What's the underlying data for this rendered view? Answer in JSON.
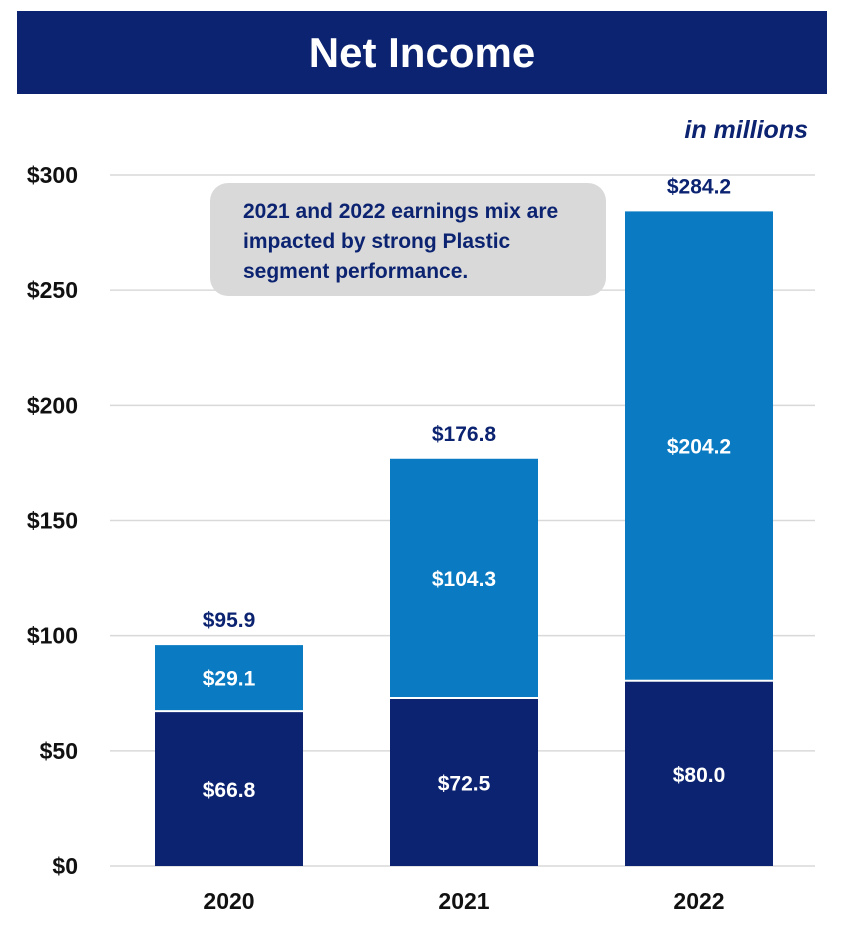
{
  "header": {
    "title": "Net Income"
  },
  "units_note": "in millions",
  "callout": "2021 and 2022 earnings mix are impacted by strong Plastic segment performance.",
  "colors": {
    "navy": "#0b2370",
    "blue": "#0a7bc2",
    "callout_bg": "#d9d9d9",
    "grid": "#d9d9d9"
  },
  "chart_data": {
    "type": "bar",
    "stacked": true,
    "title": "Net Income",
    "categories": [
      "2020",
      "2021",
      "2022"
    ],
    "series": [
      {
        "values": [
          66.8,
          72.5,
          80.0
        ],
        "labels": [
          "$66.8",
          "$72.5",
          "$80.0"
        ],
        "color": "#0b2370"
      },
      {
        "values": [
          29.1,
          104.3,
          204.2
        ],
        "labels": [
          "$29.1",
          "$104.3",
          "$204.2"
        ],
        "color": "#0a7bc2"
      }
    ],
    "totals": [
      95.9,
      176.8,
      284.2
    ],
    "total_labels": [
      "$95.9",
      "$176.8",
      "$284.2"
    ],
    "ylim": [
      0,
      300
    ],
    "yticks": [
      0,
      50,
      100,
      150,
      200,
      250,
      300
    ],
    "ytick_labels": [
      "$0",
      "$50",
      "$100",
      "$150",
      "$200",
      "$250",
      "$300"
    ],
    "grid": true,
    "legend": "none"
  }
}
